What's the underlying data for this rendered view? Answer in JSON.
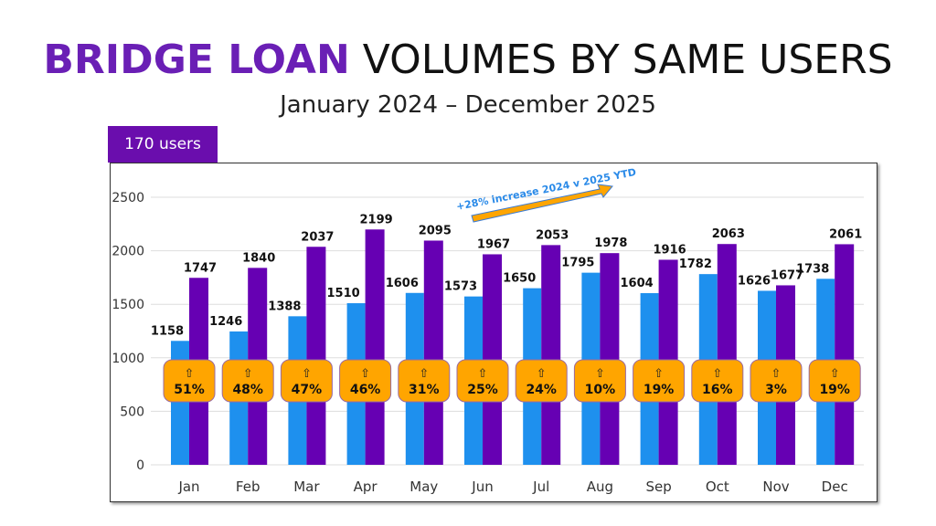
{
  "title_highlight": "BRIDGE LOAN",
  "title_rest": "VOLUMES BY SAME USERS",
  "subtitle": "January 2024 – December 2025",
  "users_tab": "170 users",
  "colors": {
    "y2024": "#1E90EE",
    "y2025": "#6600B3",
    "badge": "#FFA500",
    "accent": "#6A0DAD"
  },
  "chart_data": {
    "type": "bar",
    "categories": [
      "Jan",
      "Feb",
      "Mar",
      "Apr",
      "May",
      "Jun",
      "Jul",
      "Aug",
      "Sep",
      "Oct",
      "Nov",
      "Dec"
    ],
    "series": [
      {
        "name": "2024",
        "values": [
          1158,
          1246,
          1388,
          1510,
          1606,
          1573,
          1650,
          1795,
          1604,
          1782,
          1626,
          1738
        ]
      },
      {
        "name": "2025",
        "values": [
          1747,
          1840,
          2037,
          2199,
          2095,
          1967,
          2053,
          1978,
          1916,
          2063,
          1677,
          2061
        ]
      }
    ],
    "growth_labels": [
      "51%",
      "48%",
      "47%",
      "46%",
      "31%",
      "25%",
      "24%",
      "10%",
      "19%",
      "16%",
      "3%",
      "19%"
    ],
    "growth_icon": "⇧",
    "yticks": [
      0,
      500,
      1000,
      1500,
      2000,
      2500
    ],
    "ylim": [
      0,
      2500
    ],
    "annotation": "+28% increase 2024 v 2025 YTD",
    "grid": true
  }
}
